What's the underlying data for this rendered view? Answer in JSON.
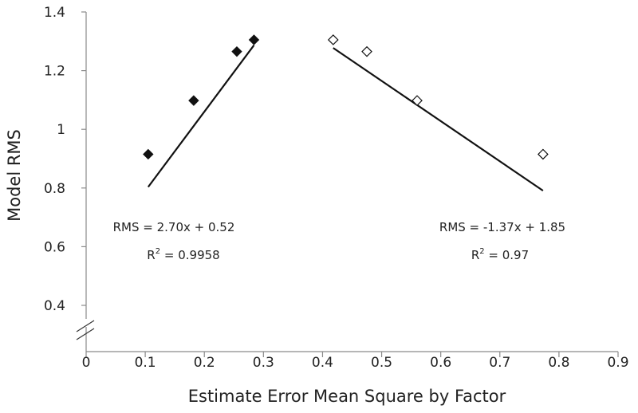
{
  "chart_data": {
    "type": "scatter",
    "xlabel": "Estimate Error Mean Square by Factor",
    "ylabel": "Model RMS",
    "xlim": [
      0,
      0.9
    ],
    "ylim": [
      0.3,
      1.4
    ],
    "x_ticks": [
      "0",
      "0.1",
      "0.2",
      "0.3",
      "0.4",
      "0.5",
      "0.6",
      "0.7",
      "0.8",
      "0.9"
    ],
    "y_ticks": [
      "0.4",
      "0.6",
      "0.8",
      "1",
      "1.2",
      "1.4"
    ],
    "axis_break": true,
    "grid": false,
    "series": [
      {
        "marker": "filled-diamond",
        "color": "#111111",
        "points": [
          {
            "x": 0.105,
            "y": 0.915
          },
          {
            "x": 0.182,
            "y": 1.098
          },
          {
            "x": 0.255,
            "y": 1.265
          },
          {
            "x": 0.284,
            "y": 1.305
          }
        ],
        "trendline": {
          "slope": 2.7,
          "intercept": 0.52,
          "x_range": [
            0.105,
            0.284
          ]
        },
        "annotation": {
          "equation": "RMS = 2.70x + 0.52",
          "r2_prefix": "R",
          "r2_sup": "2",
          "r2_value": " = 0.9958"
        }
      },
      {
        "marker": "open-diamond",
        "color": "#111111",
        "points": [
          {
            "x": 0.418,
            "y": 1.305
          },
          {
            "x": 0.475,
            "y": 1.265
          },
          {
            "x": 0.56,
            "y": 1.098
          },
          {
            "x": 0.773,
            "y": 0.915
          }
        ],
        "trendline": {
          "slope": -1.37,
          "intercept": 1.85,
          "x_range": [
            0.418,
            0.773
          ]
        },
        "annotation": {
          "equation": "RMS = -1.37x + 1.85",
          "r2_prefix": "R",
          "r2_sup": "2",
          "r2_value": " = 0.97"
        }
      }
    ]
  }
}
